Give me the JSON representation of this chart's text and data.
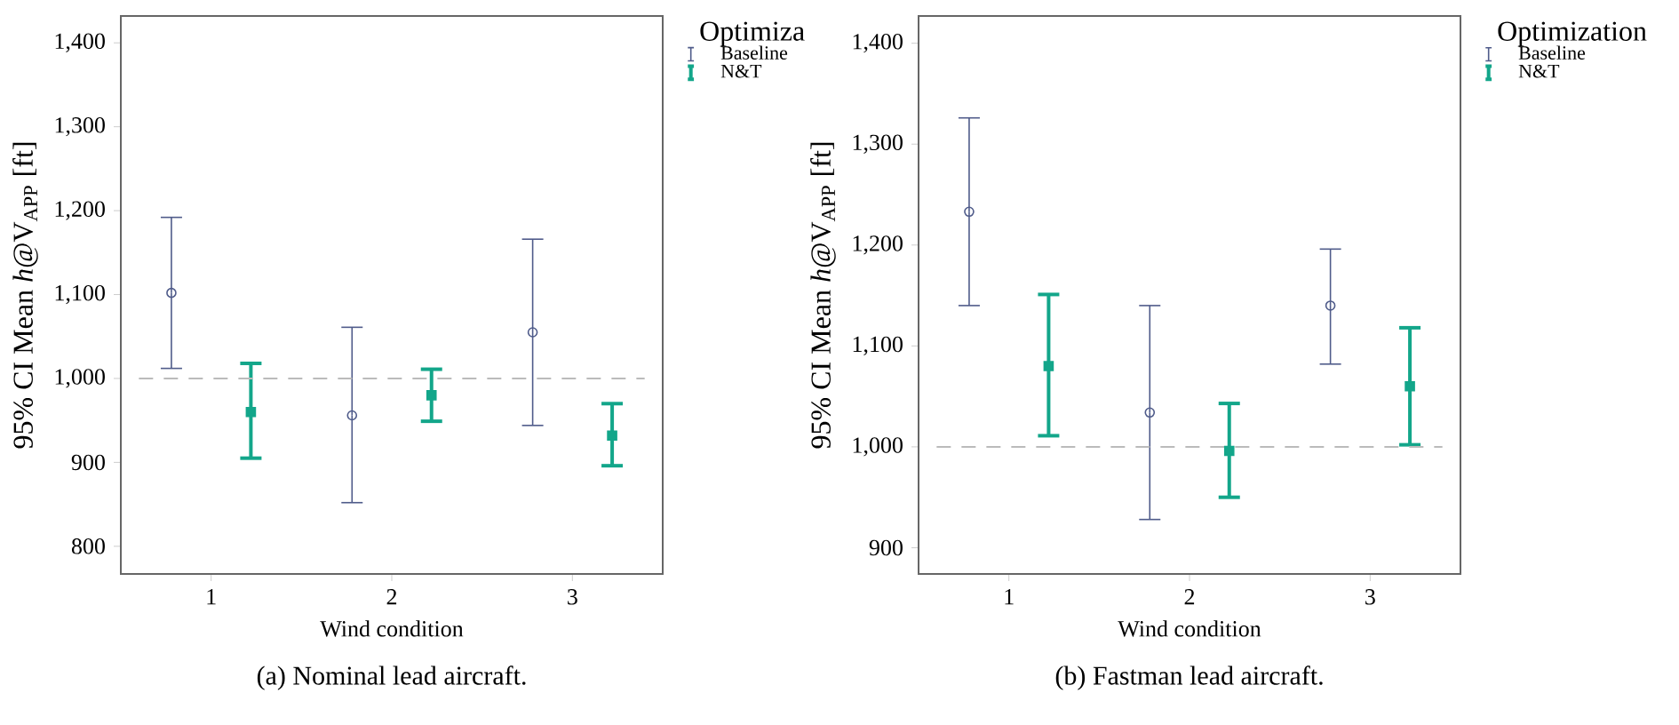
{
  "chart_data": [
    {
      "type": "scatter",
      "categories": [
        "1",
        "2",
        "3"
      ],
      "xlabel": "Wind condition",
      "ylabel": "95% CI Mean *h*@V$_{APP}$ [ft]",
      "legend_title": "Optimiza",
      "legend": "top right",
      "grid": false,
      "ylim": [
        767,
        1432
      ],
      "yticks": [
        {
          "value": 800,
          "label": "800"
        },
        {
          "value": 900,
          "label": "900"
        },
        {
          "value": 1000,
          "label": "1,000"
        },
        {
          "value": 1100,
          "label": "1,100"
        },
        {
          "value": 1200,
          "label": "1,200"
        },
        {
          "value": 1300,
          "label": "1,300"
        },
        {
          "value": 1400,
          "label": "1,400"
        }
      ],
      "series": [
        {
          "name": "Baseline",
          "color": "#4f5b8a",
          "marker": "circle",
          "values": [
            1102,
            956,
            1055
          ],
          "errors": [
            [
              1012,
              1192
            ],
            [
              852,
              1061
            ],
            [
              944,
              1166
            ]
          ]
        },
        {
          "name": "N&T",
          "color": "#13a68a",
          "marker": "square",
          "values": [
            960,
            980,
            932
          ],
          "errors": [
            [
              905,
              1018
            ],
            [
              949,
              1011
            ],
            [
              896,
              970
            ]
          ]
        }
      ],
      "ref_lines": [
        {
          "axis": "y",
          "value": 1000,
          "color": "#bbbbbb",
          "line_style": "dashed"
        }
      ],
      "annotations": [
        "(a)  Nominal lead aircraft."
      ]
    },
    {
      "type": "scatter",
      "categories": [
        "1",
        "2",
        "3"
      ],
      "xlabel": "Wind condition",
      "ylabel": "95% CI Mean *h*@V$_{APP}$ [ft]",
      "legend_title": "Optimization",
      "legend": "top right",
      "grid": false,
      "ylim": [
        874,
        1427
      ],
      "yticks": [
        {
          "value": 900,
          "label": "900"
        },
        {
          "value": 1000,
          "label": "1,000"
        },
        {
          "value": 1100,
          "label": "1,100"
        },
        {
          "value": 1200,
          "label": "1,200"
        },
        {
          "value": 1300,
          "label": "1,300"
        },
        {
          "value": 1400,
          "label": "1,400"
        }
      ],
      "series": [
        {
          "name": "Baseline",
          "color": "#4f5b8a",
          "marker": "circle",
          "values": [
            1233,
            1034,
            1140
          ],
          "errors": [
            [
              1140,
              1326
            ],
            [
              928,
              1140
            ],
            [
              1082,
              1196
            ]
          ]
        },
        {
          "name": "N&T",
          "color": "#13a68a",
          "marker": "square",
          "values": [
            1080,
            996,
            1060
          ],
          "errors": [
            [
              1011,
              1151
            ],
            [
              950,
              1043
            ],
            [
              1002,
              1118
            ]
          ]
        }
      ],
      "ref_lines": [
        {
          "axis": "y",
          "value": 1000,
          "color": "#bbbbbb",
          "line_style": "dashed"
        }
      ],
      "annotations": [
        "(b)  Fastman lead aircraft."
      ]
    }
  ]
}
